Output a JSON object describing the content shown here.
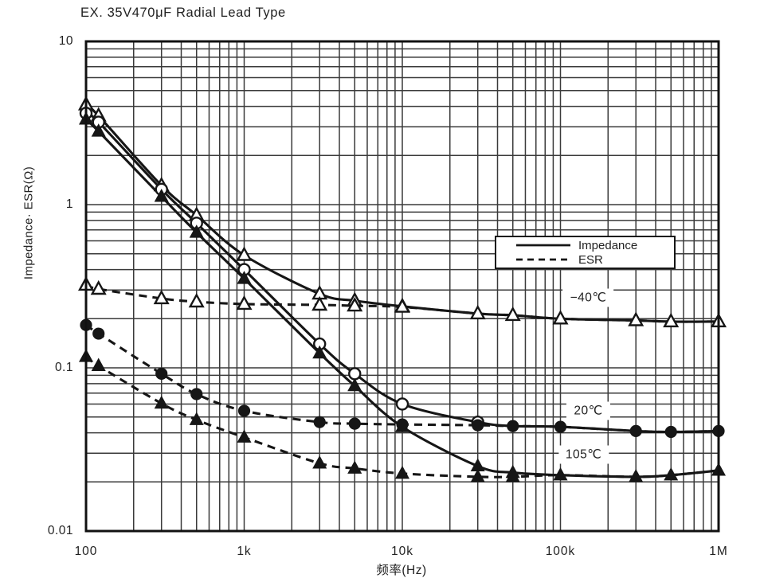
{
  "title": "EX. 35V470μF Radial Lead Type",
  "legend": {
    "impedance_label": "Impedance",
    "esr_label": "ESR"
  },
  "colors": {
    "curve": "#161616",
    "grid": "#3a3a3a",
    "frame": "#111111",
    "background": "#ffffff"
  },
  "chart_data": {
    "type": "line",
    "x_scale": "log",
    "y_scale": "log",
    "xlabel": "频率(Hz)",
    "ylabel": "Impedance· ESR(Ω)",
    "xlim": [
      100,
      1000000
    ],
    "ylim": [
      0.01,
      10
    ],
    "grid": "full log-log grid, minor lines both axes",
    "legend_position": "inside upper-right",
    "x_ticks": [
      {
        "label": "100",
        "value": 100
      },
      {
        "label": "1k",
        "value": 1000
      },
      {
        "label": "10k",
        "value": 10000
      },
      {
        "label": "100k",
        "value": 100000
      },
      {
        "label": "1M",
        "value": 1000000
      }
    ],
    "y_ticks": [
      {
        "label": "10",
        "value": 10
      },
      {
        "label": "1",
        "value": 1
      },
      {
        "label": "0.1",
        "value": 0.1
      },
      {
        "label": "0.01",
        "value": 0.01
      }
    ],
    "annotations": [
      {
        "text": "−40℃",
        "x_hz": 150000,
        "y_ohm": 0.27
      },
      {
        "text": "20℃",
        "x_hz": 150000,
        "y_ohm": 0.0545
      },
      {
        "text": "105℃",
        "x_hz": 140000,
        "y_ohm": 0.0295
      }
    ],
    "series": [
      {
        "name": "Impedance −40℃",
        "temperature": "−40℃",
        "quantity": "impedance",
        "line": "solid",
        "marker": {
          "shape": "triangle",
          "fill": "open"
        },
        "marker_count": 14,
        "points": [
          [
            100,
            4.1
          ],
          [
            120,
            3.5
          ],
          [
            300,
            1.31
          ],
          [
            500,
            0.86
          ],
          [
            1000,
            0.49
          ],
          [
            3000,
            0.284
          ],
          [
            5000,
            0.258
          ],
          [
            10000,
            0.238
          ],
          [
            30000,
            0.215
          ],
          [
            50000,
            0.21
          ],
          [
            100000,
            0.2
          ],
          [
            300000,
            0.195
          ],
          [
            500000,
            0.192
          ],
          [
            1000000,
            0.192
          ]
        ]
      },
      {
        "name": "Impedance 20℃",
        "temperature": "20℃",
        "quantity": "impedance",
        "line": "solid",
        "marker": {
          "shape": "circle",
          "fill": "open"
        },
        "marker_count": 9,
        "points": [
          [
            100,
            3.63
          ],
          [
            120,
            3.2
          ],
          [
            300,
            1.24
          ],
          [
            500,
            0.77
          ],
          [
            1000,
            0.4
          ],
          [
            3000,
            0.14
          ],
          [
            5000,
            0.092
          ],
          [
            10000,
            0.06
          ],
          [
            30000,
            0.0465
          ],
          [
            50000,
            0.044
          ],
          [
            100000,
            0.0435
          ],
          [
            300000,
            0.041
          ],
          [
            500000,
            0.0405
          ],
          [
            1000000,
            0.041
          ]
        ]
      },
      {
        "name": "Impedance 105℃",
        "temperature": "105℃",
        "quantity": "impedance",
        "line": "solid",
        "marker": {
          "shape": "triangle",
          "fill": "filled"
        },
        "marker_count": 10,
        "points": [
          [
            100,
            3.33
          ],
          [
            120,
            2.81
          ],
          [
            300,
            1.12
          ],
          [
            500,
            0.675
          ],
          [
            1000,
            0.352
          ],
          [
            3000,
            0.123
          ],
          [
            5000,
            0.0775
          ],
          [
            10000,
            0.0435
          ],
          [
            30000,
            0.025
          ],
          [
            50000,
            0.0228
          ],
          [
            100000,
            0.022
          ],
          [
            300000,
            0.0215
          ],
          [
            500000,
            0.022
          ],
          [
            1000000,
            0.0235
          ]
        ]
      },
      {
        "name": "ESR −40℃",
        "temperature": "−40℃",
        "quantity": "esr",
        "line": "dashed",
        "marker": {
          "shape": "triangle",
          "fill": "open"
        },
        "marker_count": 8,
        "points": [
          [
            100,
            0.322
          ],
          [
            120,
            0.304
          ],
          [
            300,
            0.266
          ],
          [
            500,
            0.254
          ],
          [
            1000,
            0.246
          ],
          [
            3000,
            0.243
          ],
          [
            5000,
            0.24
          ],
          [
            10000,
            0.236
          ],
          [
            30000,
            0.215
          ],
          [
            50000,
            0.21
          ],
          [
            100000,
            0.2
          ],
          [
            300000,
            0.195
          ],
          [
            500000,
            0.192
          ],
          [
            1000000,
            0.192
          ]
        ]
      },
      {
        "name": "ESR 20℃",
        "temperature": "20℃",
        "quantity": "esr",
        "line": "dashed",
        "marker": {
          "shape": "circle",
          "fill": "filled"
        },
        "marker_count": 14,
        "points": [
          [
            100,
            0.183
          ],
          [
            120,
            0.162
          ],
          [
            300,
            0.092
          ],
          [
            500,
            0.069
          ],
          [
            1000,
            0.0545
          ],
          [
            3000,
            0.0465
          ],
          [
            5000,
            0.0455
          ],
          [
            10000,
            0.045
          ],
          [
            30000,
            0.0445
          ],
          [
            50000,
            0.044
          ],
          [
            100000,
            0.0435
          ],
          [
            300000,
            0.041
          ],
          [
            500000,
            0.0405
          ],
          [
            1000000,
            0.041
          ]
        ]
      },
      {
        "name": "ESR 105℃",
        "temperature": "105℃",
        "quantity": "esr",
        "line": "dashed",
        "marker": {
          "shape": "triangle",
          "fill": "filled"
        },
        "marker_count": 14,
        "points": [
          [
            100,
            0.117
          ],
          [
            120,
            0.103
          ],
          [
            300,
            0.0605
          ],
          [
            500,
            0.048
          ],
          [
            1000,
            0.0375
          ],
          [
            3000,
            0.026
          ],
          [
            5000,
            0.0242
          ],
          [
            10000,
            0.0225
          ],
          [
            30000,
            0.0215
          ],
          [
            50000,
            0.0215
          ],
          [
            100000,
            0.022
          ],
          [
            300000,
            0.0215
          ],
          [
            500000,
            0.022
          ],
          [
            1000000,
            0.0235
          ]
        ]
      }
    ]
  }
}
